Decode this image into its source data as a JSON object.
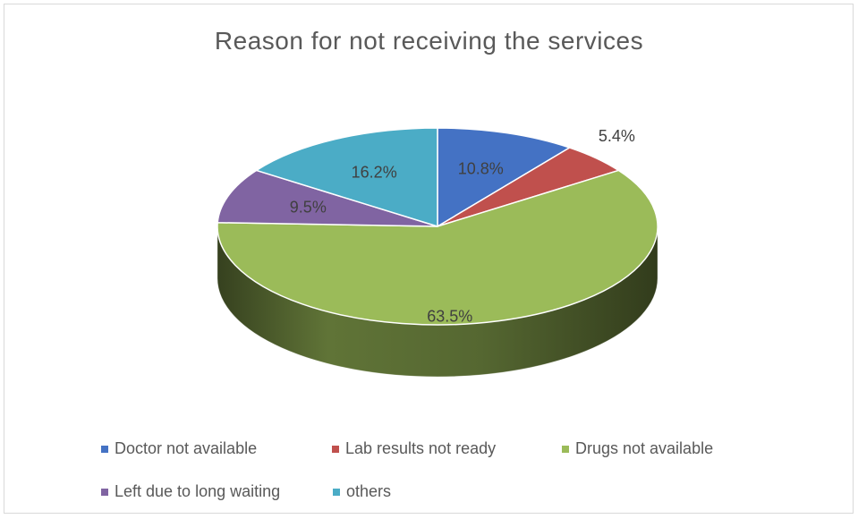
{
  "chart_data": {
    "type": "pie",
    "title": "Reason for not receiving the services",
    "slices": [
      {
        "label": "Doctor not available",
        "value": 10.8,
        "display": "10.8%",
        "color": "#4472c4"
      },
      {
        "label": "Lab results not ready",
        "value": 5.4,
        "display": "5.4%",
        "color": "#c0504d"
      },
      {
        "label": "Drugs not available",
        "value": 63.5,
        "display": "63.5%",
        "color": "#9bbb59"
      },
      {
        "label": "Left due to long waiting",
        "value": 9.5,
        "display": "9.5%",
        "color": "#8064a2"
      },
      {
        "label": "others",
        "value": 16.2,
        "display": "16.2%",
        "color": "#4bacc6"
      }
    ],
    "legend_position": "bottom",
    "style": "3d"
  }
}
